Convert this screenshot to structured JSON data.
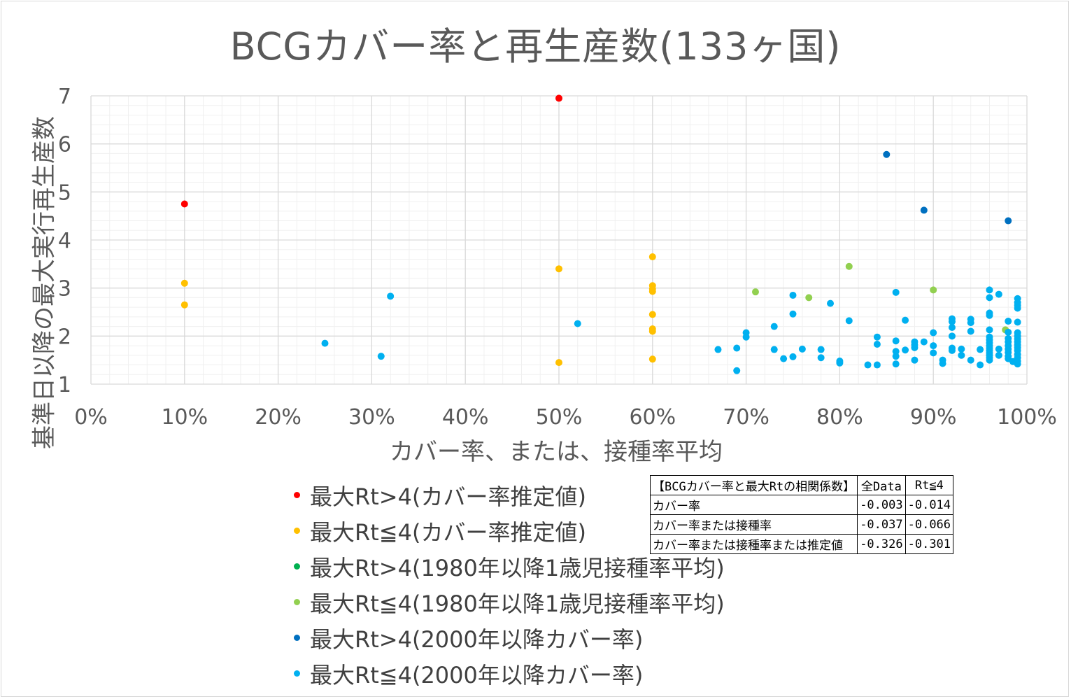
{
  "chart_data": {
    "type": "scatter",
    "title": "BCGカバー率と再生産数(133ヶ国)",
    "xlabel": "カバー率、または、接種率平均",
    "ylabel": "基準日以降の最大実行再生産数",
    "xlim": [
      0,
      1
    ],
    "ylim": [
      1,
      7
    ],
    "x_ticks": [
      "0%",
      "10%",
      "20%",
      "30%",
      "40%",
      "50%",
      "60%",
      "70%",
      "80%",
      "90%",
      "100%"
    ],
    "y_ticks": [
      "1",
      "2",
      "3",
      "4",
      "5",
      "6",
      "7"
    ],
    "grid": true,
    "legend_position": "bottom-left",
    "series": [
      {
        "name": "最大Rt>4(カバー率推定値)",
        "color": "#ff0000",
        "points": [
          [
            0.1,
            4.75
          ],
          [
            0.5,
            6.95
          ]
        ]
      },
      {
        "name": "最大Rt≦4(カバー率推定値)",
        "color": "#ffc000",
        "points": [
          [
            0.1,
            3.1
          ],
          [
            0.1,
            2.65
          ],
          [
            0.5,
            3.4
          ],
          [
            0.5,
            1.45
          ],
          [
            0.6,
            3.65
          ],
          [
            0.6,
            3.05
          ],
          [
            0.6,
            2.98
          ],
          [
            0.6,
            2.93
          ],
          [
            0.6,
            2.45
          ],
          [
            0.6,
            2.15
          ],
          [
            0.6,
            2.1
          ],
          [
            0.6,
            1.52
          ]
        ]
      },
      {
        "name": "最大Rt>4(1980年以降1歳児接種率平均)",
        "color": "#00b050",
        "points": []
      },
      {
        "name": "最大Rt≦4(1980年以降1歳児接種率平均)",
        "color": "#92d050",
        "points": [
          [
            0.71,
            2.92
          ],
          [
            0.767,
            2.8
          ],
          [
            0.81,
            3.45
          ],
          [
            0.9,
            2.96
          ],
          [
            0.977,
            2.13
          ]
        ]
      },
      {
        "name": "最大Rt>4(2000年以降カバー率)",
        "color": "#0070c0",
        "points": [
          [
            0.85,
            5.78
          ],
          [
            0.89,
            4.62
          ],
          [
            0.98,
            4.4
          ]
        ]
      },
      {
        "name": "最大Rt≦4(2000年以降カバー率)",
        "color": "#00b0f0",
        "points": [
          [
            0.25,
            1.85
          ],
          [
            0.31,
            1.58
          ],
          [
            0.32,
            2.83
          ],
          [
            0.52,
            2.26
          ],
          [
            0.67,
            1.72
          ],
          [
            0.69,
            1.75
          ],
          [
            0.69,
            1.28
          ],
          [
            0.7,
            2.07
          ],
          [
            0.7,
            1.98
          ],
          [
            0.73,
            2.2
          ],
          [
            0.73,
            1.72
          ],
          [
            0.74,
            1.53
          ],
          [
            0.75,
            2.85
          ],
          [
            0.75,
            2.46
          ],
          [
            0.75,
            1.57
          ],
          [
            0.76,
            1.73
          ],
          [
            0.78,
            1.72
          ],
          [
            0.78,
            1.55
          ],
          [
            0.79,
            2.68
          ],
          [
            0.8,
            1.48
          ],
          [
            0.8,
            1.44
          ],
          [
            0.81,
            2.32
          ],
          [
            0.83,
            1.4
          ],
          [
            0.84,
            1.98
          ],
          [
            0.84,
            1.83
          ],
          [
            0.84,
            1.4
          ],
          [
            0.86,
            2.91
          ],
          [
            0.86,
            1.9
          ],
          [
            0.86,
            1.68
          ],
          [
            0.86,
            1.58
          ],
          [
            0.86,
            1.42
          ],
          [
            0.87,
            2.33
          ],
          [
            0.87,
            1.71
          ],
          [
            0.88,
            1.88
          ],
          [
            0.88,
            1.82
          ],
          [
            0.88,
            1.76
          ],
          [
            0.88,
            1.5
          ],
          [
            0.89,
            1.88
          ],
          [
            0.9,
            2.07
          ],
          [
            0.9,
            1.8
          ],
          [
            0.9,
            1.65
          ],
          [
            0.91,
            1.5
          ],
          [
            0.91,
            1.43
          ],
          [
            0.92,
            2.36
          ],
          [
            0.92,
            2.3
          ],
          [
            0.92,
            2.18
          ],
          [
            0.92,
            2.0
          ],
          [
            0.92,
            1.75
          ],
          [
            0.92,
            1.7
          ],
          [
            0.93,
            1.73
          ],
          [
            0.93,
            1.6
          ],
          [
            0.94,
            2.35
          ],
          [
            0.94,
            2.28
          ],
          [
            0.94,
            2.1
          ],
          [
            0.94,
            1.5
          ],
          [
            0.95,
            1.72
          ],
          [
            0.95,
            1.4
          ],
          [
            0.96,
            2.96
          ],
          [
            0.96,
            2.8
          ],
          [
            0.96,
            2.48
          ],
          [
            0.96,
            2.43
          ],
          [
            0.96,
            2.13
          ],
          [
            0.96,
            1.98
          ],
          [
            0.96,
            1.92
          ],
          [
            0.96,
            1.86
          ],
          [
            0.96,
            1.8
          ],
          [
            0.96,
            1.75
          ],
          [
            0.96,
            1.7
          ],
          [
            0.96,
            1.65
          ],
          [
            0.96,
            1.6
          ],
          [
            0.96,
            1.55
          ],
          [
            0.96,
            1.5
          ],
          [
            0.97,
            2.87
          ],
          [
            0.97,
            1.73
          ],
          [
            0.97,
            1.6
          ],
          [
            0.98,
            2.31
          ],
          [
            0.98,
            2.08
          ],
          [
            0.98,
            1.95
          ],
          [
            0.98,
            1.88
          ],
          [
            0.98,
            1.8
          ],
          [
            0.98,
            1.73
          ],
          [
            0.98,
            1.66
          ],
          [
            0.98,
            1.58
          ],
          [
            0.98,
            1.53
          ],
          [
            0.985,
            1.47
          ],
          [
            0.99,
            2.78
          ],
          [
            0.99,
            2.7
          ],
          [
            0.99,
            2.64
          ],
          [
            0.99,
            2.58
          ],
          [
            0.99,
            2.29
          ],
          [
            0.99,
            2.07
          ],
          [
            0.99,
            2.0
          ],
          [
            0.99,
            1.94
          ],
          [
            0.99,
            1.88
          ],
          [
            0.99,
            1.82
          ],
          [
            0.99,
            1.76
          ],
          [
            0.99,
            1.7
          ],
          [
            0.99,
            1.62
          ],
          [
            0.99,
            1.55
          ],
          [
            0.99,
            1.48
          ],
          [
            0.99,
            1.42
          ]
        ]
      }
    ]
  },
  "correlation_table": {
    "headers": [
      "【BCGカバー率と最大Rtの相関係数】",
      "全Data",
      "Rt≦4"
    ],
    "rows": [
      [
        "カバー率",
        "-0.003",
        "-0.014"
      ],
      [
        "カバー率または接種率",
        "-0.037",
        "-0.066"
      ],
      [
        "カバー率または接種率または推定値",
        "-0.326",
        "-0.301"
      ]
    ]
  }
}
